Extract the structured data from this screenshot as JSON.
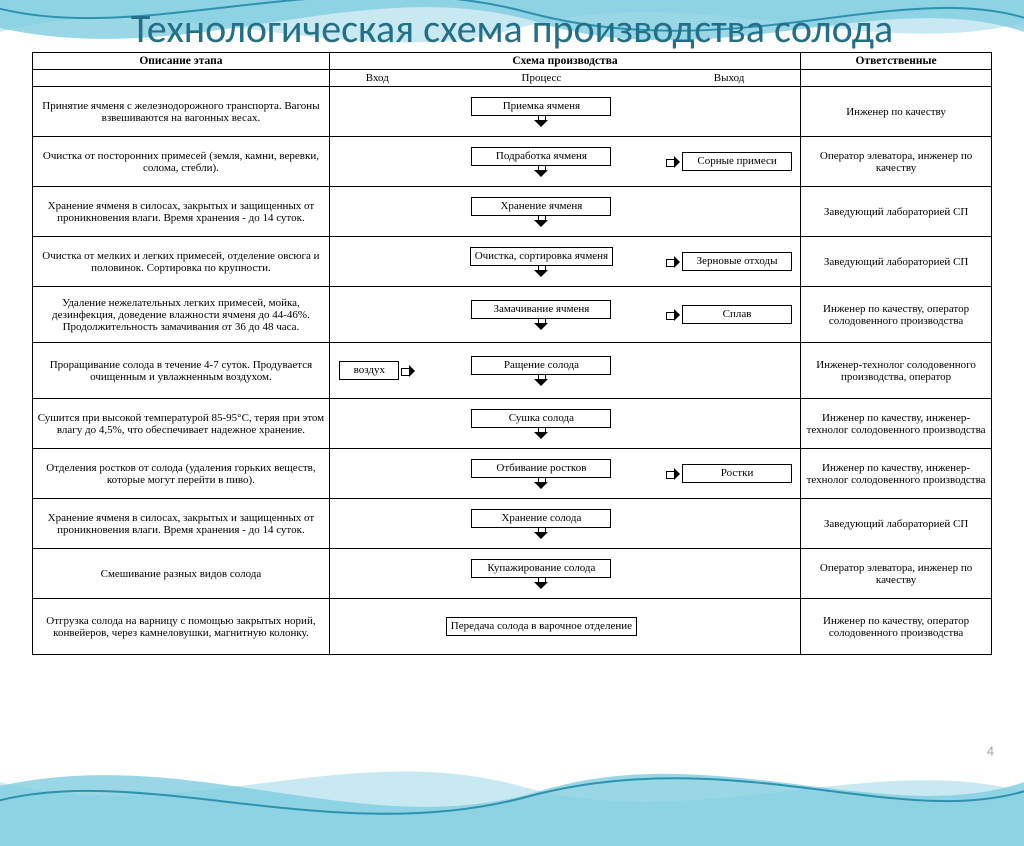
{
  "title": "Технологическая схема производства солода",
  "page_number": "4",
  "colors": {
    "title": "#226f87",
    "wave_light": "#c9e9f2",
    "wave_mid": "#7fcde0",
    "wave_dark": "#2e92ad",
    "border": "#000000",
    "bg": "#ffffff"
  },
  "headers": {
    "desc": "Описание этапа",
    "scheme": "Схема производства",
    "resp": "Ответственные",
    "in": "Вход",
    "proc": "Процесс",
    "out": "Выход"
  },
  "steps": [
    {
      "desc": "Принятие ячменя с железнодорожного транспорта. Вагоны взвешиваются на вагонных весах.",
      "process": "Приемка ячменя",
      "resp": "Инженер по качеству"
    },
    {
      "desc": "Очистка от посторонних примесей (земля, камни, веревки, солома, стебли).",
      "process": "Подработка ячменя",
      "output": "Сорные примеси",
      "resp": "Оператор элеватора, инженер по качеству"
    },
    {
      "desc": "Хранение ячменя в силосах, закрытых и защищенных от проникновения влаги. Время хранения - до 14 суток.",
      "process": "Хранение ячменя",
      "resp": "Заведующий лабораторией СП"
    },
    {
      "desc": "Очистка от мелких и легких примесей, отделение овсюга и половинок. Сортировка по крупности.",
      "process": "Очистка, сортировка ячменя",
      "output": "Зерновые отходы",
      "resp": "Заведующий лабораторией СП"
    },
    {
      "desc": "Удаление нежелательных легких примесей, мойка, дезинфекция, доведение влажности ячменя до 44-46%. Продолжительность замачивания от 36 до 48 часа.",
      "process": "Замачивание ячменя",
      "output": "Сплав",
      "resp": "Инженер по качеству, оператор солодовенного производства"
    },
    {
      "desc": "Проращивание солода в течение 4-7 суток. Продувается очищенным и увлажненным воздухом.",
      "input": "воздух",
      "process": "Ращение солода",
      "resp": "Инженер-технолог солодовенного производства, оператор"
    },
    {
      "desc": "Сушится при высокой температурой 85-95°С, теряя при этом влагу до 4,5%, что обеспечивает надежное хранение.",
      "process": "Сушка солода",
      "resp": "Инженер по качеству, инженер-технолог солодовенного производства"
    },
    {
      "desc": "Отделения ростков от солода (удаления горьких веществ, которые могут перейти в пиво).",
      "process": "Отбивание ростков",
      "output": "Ростки",
      "resp": "Инженер по качеству, инженер-технолог солодовенного производства"
    },
    {
      "desc": "Хранение ячменя в силосах, закрытых и защищенных от проникновения влаги. Время хранения - до 14 суток.",
      "process": "Хранение солода",
      "resp": "Заведующий лабораторией СП"
    },
    {
      "desc": "Смешивание разных видов солода",
      "process": "Купажирование солода",
      "resp": "Оператор элеватора, инженер по качеству"
    },
    {
      "desc": "Отгрузка солода на варницу с помощью закрытых норий, конвейеров, через камнеловушки, магнитную колонку.",
      "process": "Передача солода в варочное отделение",
      "resp": "Инженер по качеству, оператор солодовенного производства"
    }
  ]
}
